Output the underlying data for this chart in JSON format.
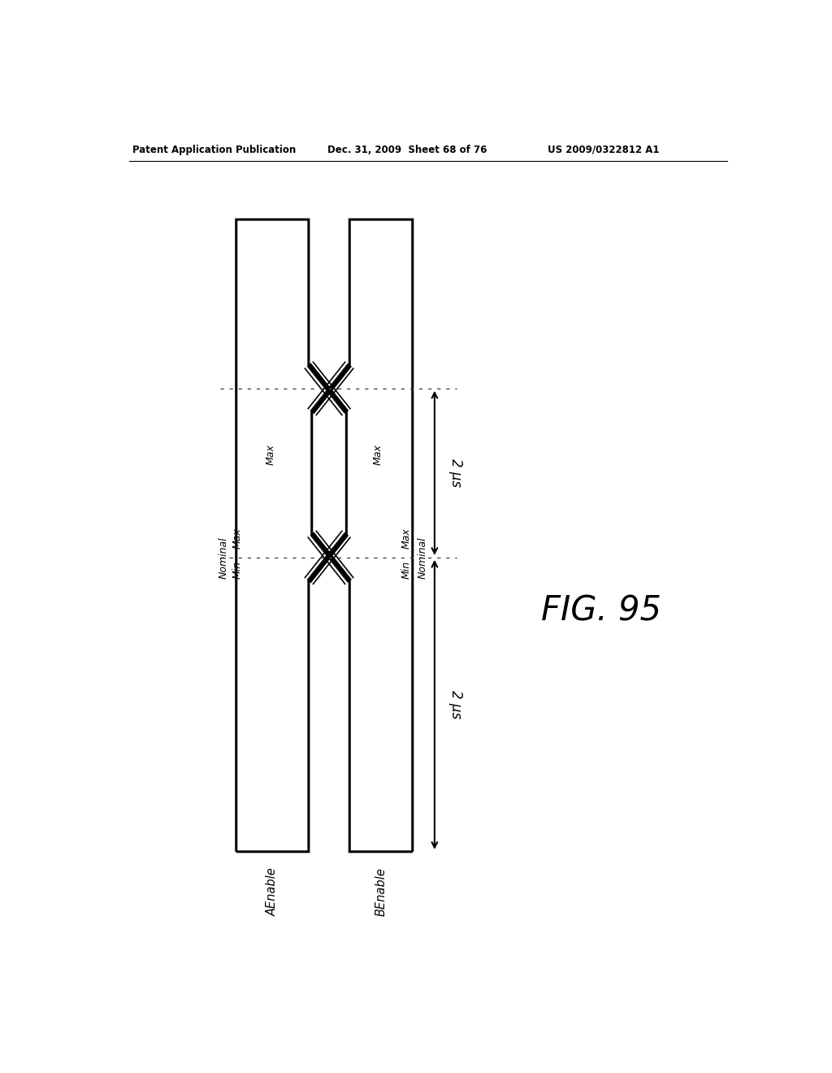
{
  "header_left": "Patent Application Publication",
  "header_mid": "Dec. 31, 2009  Sheet 68 of 76",
  "header_right": "US 2009/0322812 A1",
  "fig_label": "FIG. 95",
  "label_A": "AEnable",
  "label_B": "BEnable",
  "label_nominal_A": "Nominal",
  "label_min_A": "Min",
  "label_max_A": "Max",
  "label_nominal_B": "Nominal",
  "label_min_B": "Min",
  "label_max_B": "Max",
  "arrow_label": "2 μs",
  "bg_color": "#ffffff",
  "line_color": "#000000"
}
